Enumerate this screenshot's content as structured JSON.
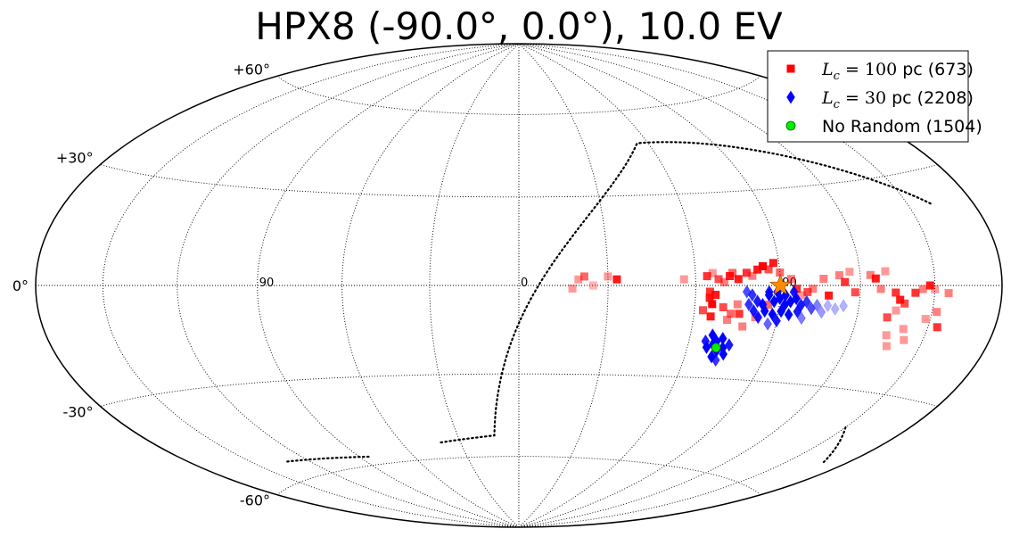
{
  "chart_data": {
    "type": "scatter",
    "projection": "hammer",
    "title": "HPX8 (-90.0°, 0.0°), 10.0 EV",
    "grid": true,
    "legend_position": "top-right",
    "lat_ticks": [
      {
        "lat": 60,
        "label": "+60°"
      },
      {
        "lat": 30,
        "label": "+30°"
      },
      {
        "lat": 0,
        "label": "0°"
      },
      {
        "lat": -30,
        "label": "-30°"
      },
      {
        "lat": -60,
        "label": "-60°"
      }
    ],
    "lon_ticks": [
      {
        "lon": 90,
        "label": "90"
      },
      {
        "lon": 0,
        "label": "0"
      },
      {
        "lon": -90,
        "label": "90"
      }
    ],
    "source": {
      "lon": -90,
      "lat": 0,
      "marker": "star",
      "color": "#ff8c00"
    },
    "series": [
      {
        "name": "Lc=100 pc (673)",
        "legend_math": "L",
        "legend_sub": "c",
        "legend_rest": " = 100 ",
        "legend_tail": "pc (673)",
        "marker": "square",
        "color": "#ff0000",
        "points": [
          [
            -56,
            2,
            0.4
          ],
          [
            -64,
            3,
            0.8
          ],
          [
            -73,
            4,
            0.6
          ],
          [
            -72,
            3,
            0.9
          ],
          [
            -78,
            4,
            0.8
          ],
          [
            -82,
            5,
            0.9
          ],
          [
            -84,
            6,
            1
          ],
          [
            -86,
            5,
            0.7
          ],
          [
            -88,
            7,
            0.9
          ],
          [
            -90,
            4,
            0.6
          ],
          [
            -80,
            3,
            0.5
          ],
          [
            -75,
            2,
            0.9
          ],
          [
            -68,
            2,
            0.7
          ],
          [
            -70,
            1,
            0.5
          ],
          [
            -66,
            4,
            0.4
          ],
          [
            -94,
            2,
            0.5
          ],
          [
            -96,
            -1,
            0.8
          ],
          [
            -98,
            -3,
            0.4
          ],
          [
            -100,
            -2,
            0.7
          ],
          [
            -102,
            -1,
            0.5
          ],
          [
            -106,
            2,
            0.5
          ],
          [
            -108,
            -3,
            0.9
          ],
          [
            -112,
            3,
            0.5
          ],
          [
            -114,
            1,
            0.8
          ],
          [
            -116,
            4,
            0.4
          ],
          [
            -118,
            -2,
            0.7
          ],
          [
            -124,
            3,
            0.5
          ],
          [
            -126,
            2,
            0.9
          ],
          [
            -128,
            -1,
            0.5
          ],
          [
            -130,
            4,
            0.4
          ],
          [
            -134,
            -2,
            0.8
          ],
          [
            -136,
            -4,
            0.9
          ],
          [
            -138,
            -5,
            0.7
          ],
          [
            -142,
            -2,
            0.8
          ],
          [
            -145,
            -1,
            0.5
          ],
          [
            -148,
            0,
            0.9
          ],
          [
            -150,
            -1,
            0.4
          ],
          [
            -156,
            -2,
            0.5
          ],
          [
            -152,
            -7,
            0.5
          ],
          [
            -148,
            -9,
            0.4
          ],
          [
            -135,
            -7,
            0.4
          ],
          [
            -132,
            -9,
            0.7
          ],
          [
            -134,
            -14,
            0.4
          ],
          [
            -136,
            -17,
            0.4
          ],
          [
            -140,
            -12,
            0.4
          ],
          [
            -142,
            -15,
            0.4
          ],
          [
            -154,
            -11,
            0.8
          ],
          [
            -65,
            -2,
            0.8
          ],
          [
            -65,
            -4,
            0.9
          ],
          [
            -66,
            -6,
            1
          ],
          [
            -67,
            -3,
            0.9
          ],
          [
            -70,
            -7,
            0.7
          ],
          [
            -63,
            -8,
            0.7
          ],
          [
            -73,
            -9,
            0.6
          ],
          [
            -75,
            -6,
            0.5
          ],
          [
            -76,
            -9,
            0.8
          ],
          [
            -66,
            -10,
            0.9
          ],
          [
            -72,
            -11,
            0.5
          ],
          [
            -78,
            -13,
            0.5
          ],
          [
            -82,
            -10,
            0.5
          ],
          [
            -86,
            -6,
            0.6
          ],
          [
            -20,
            2,
            0.4
          ],
          [
            -22,
            3,
            0.6
          ],
          [
            -25,
            0,
            0.3
          ],
          [
            -30,
            3,
            0.4
          ],
          [
            -33,
            2,
            0.9
          ],
          [
            -18,
            -1,
            0.4
          ]
        ]
      },
      {
        "name": "Lc=30 pc (2208)",
        "legend_math": "L",
        "legend_sub": "c",
        "legend_rest": " = 30 ",
        "legend_tail": "pc (2208)",
        "marker": "diamond",
        "color": "#0000ff",
        "points": [
          [
            -90,
            -4,
            1
          ],
          [
            -88,
            -5,
            1
          ],
          [
            -86,
            -3,
            1
          ],
          [
            -84,
            -6,
            1
          ],
          [
            -92,
            -6,
            1
          ],
          [
            -94,
            -5,
            1
          ],
          [
            -96,
            -4,
            1
          ],
          [
            -98,
            -6,
            0.9
          ],
          [
            -100,
            -5,
            0.8
          ],
          [
            -102,
            -7,
            0.7
          ],
          [
            -85,
            -8,
            1
          ],
          [
            -88,
            -9,
            1
          ],
          [
            -91,
            -8,
            1
          ],
          [
            -94,
            -9,
            1
          ],
          [
            -97,
            -8,
            0.9
          ],
          [
            -82,
            -5,
            0.9
          ],
          [
            -80,
            -3,
            0.8
          ],
          [
            -78,
            -2,
            0.7
          ],
          [
            -79,
            -6,
            0.8
          ],
          [
            -86,
            -2,
            0.9
          ],
          [
            -89,
            -2,
            1
          ],
          [
            -92,
            -3,
            1
          ],
          [
            -95,
            -2,
            0.9
          ],
          [
            -104,
            -6,
            0.5
          ],
          [
            -106,
            -8,
            0.4
          ],
          [
            -108,
            -6,
            0.3
          ],
          [
            -111,
            -7,
            0.3
          ],
          [
            -114,
            -6,
            0.3
          ],
          [
            -83,
            -10,
            0.9
          ],
          [
            -90,
            -11,
            0.9
          ],
          [
            -99,
            -10,
            0.5
          ],
          [
            -87,
            -12,
            0.6
          ],
          [
            -81,
            -8,
            0.9
          ],
          [
            -68,
            -16,
            1
          ],
          [
            -70,
            -18,
            1
          ],
          [
            -72,
            -17,
            1
          ],
          [
            -73,
            -20,
            1
          ],
          [
            -71,
            -21,
            1
          ],
          [
            -69,
            -19,
            1
          ],
          [
            -67,
            -20,
            1
          ],
          [
            -74,
            -22,
            1
          ],
          [
            -70,
            -23,
            1
          ],
          [
            -66,
            -18,
            0.9
          ],
          [
            -75,
            -19,
            0.9
          ],
          [
            -72,
            -24,
            0.8
          ]
        ]
      },
      {
        "name": "No Random (1504)",
        "legend_math": "",
        "legend_sub": "",
        "legend_rest": "",
        "legend_tail": "No Random (1504)",
        "marker": "circle",
        "color": "#00ee00",
        "points": [
          [
            -70.5,
            -20,
            1
          ]
        ]
      }
    ],
    "deflection_curve": {
      "lon_start": 40,
      "lat_start": -54,
      "lat_top": 50,
      "lon_top": -95
    }
  }
}
